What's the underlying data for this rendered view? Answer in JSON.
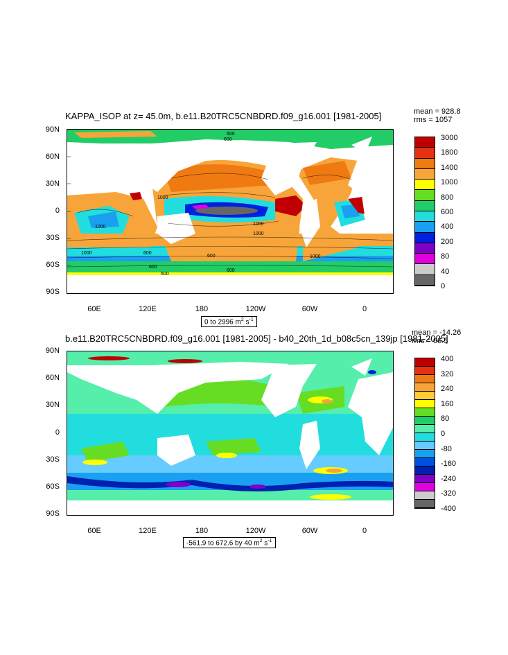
{
  "panel1": {
    "title": "KAPPA_ISOP at z=  45.0m, b.e11.B20TRC5CNBDRD.f09_g16.001 [1981-2005]",
    "mean": "mean = 928.8",
    "rms": "rms = 1057",
    "range": "0 to 2996 m",
    "range_sup": "2",
    "range_unit_tail": " s",
    "range_exp": "-1",
    "legend_labels": [
      "3000",
      "1800",
      "1400",
      "1000",
      "800",
      "600",
      "400",
      "200",
      "80",
      "40",
      "0"
    ],
    "legend_colors": [
      "#c00000",
      "#e63212",
      "#f07a12",
      "#f7a53a",
      "#ffff00",
      "#66dd22",
      "#22cc66",
      "#22dddd",
      "#1aa0f0",
      "#0020e0",
      "#8000c8",
      "#e000e0",
      "#cccccc",
      "#666666"
    ],
    "contour_labels": [
      "600",
      "600",
      "1000",
      "1000",
      "600",
      "600",
      "1000",
      "600",
      "1000",
      "1000",
      "600",
      "600",
      "1000"
    ]
  },
  "panel2": {
    "title": "b.e11.B20TRC5CNBDRD.f09_g16.001 [1981-2005] - b40_20th_1d_b08c5cn_139jp [1981-2005]",
    "mean": "mean = -14.26",
    "rms": "rms = 66.5",
    "range": "-561.9 to 672.6 by 40 m",
    "range_sup": "2",
    "range_unit_tail": " s",
    "range_exp": "-1",
    "legend_labels": [
      "400",
      "320",
      "240",
      "160",
      "80",
      "0",
      "-80",
      "-160",
      "-240",
      "-320",
      "-400"
    ],
    "legend_colors": [
      "#c00000",
      "#e63212",
      "#f07a12",
      "#f7a53a",
      "#ffcc33",
      "#ffff00",
      "#66dd22",
      "#22cc66",
      "#55eeaa",
      "#22dddd",
      "#66ccff",
      "#1aa0f0",
      "#0050e0",
      "#0020b0",
      "#8000c8",
      "#e000e0",
      "#cccccc",
      "#666666"
    ]
  },
  "axes": {
    "lat_labels": [
      "90N",
      "60N",
      "30N",
      "0",
      "30S",
      "60S",
      "90S"
    ],
    "lon_labels": [
      "60E",
      "120E",
      "180",
      "120W",
      "60W",
      "0"
    ]
  }
}
